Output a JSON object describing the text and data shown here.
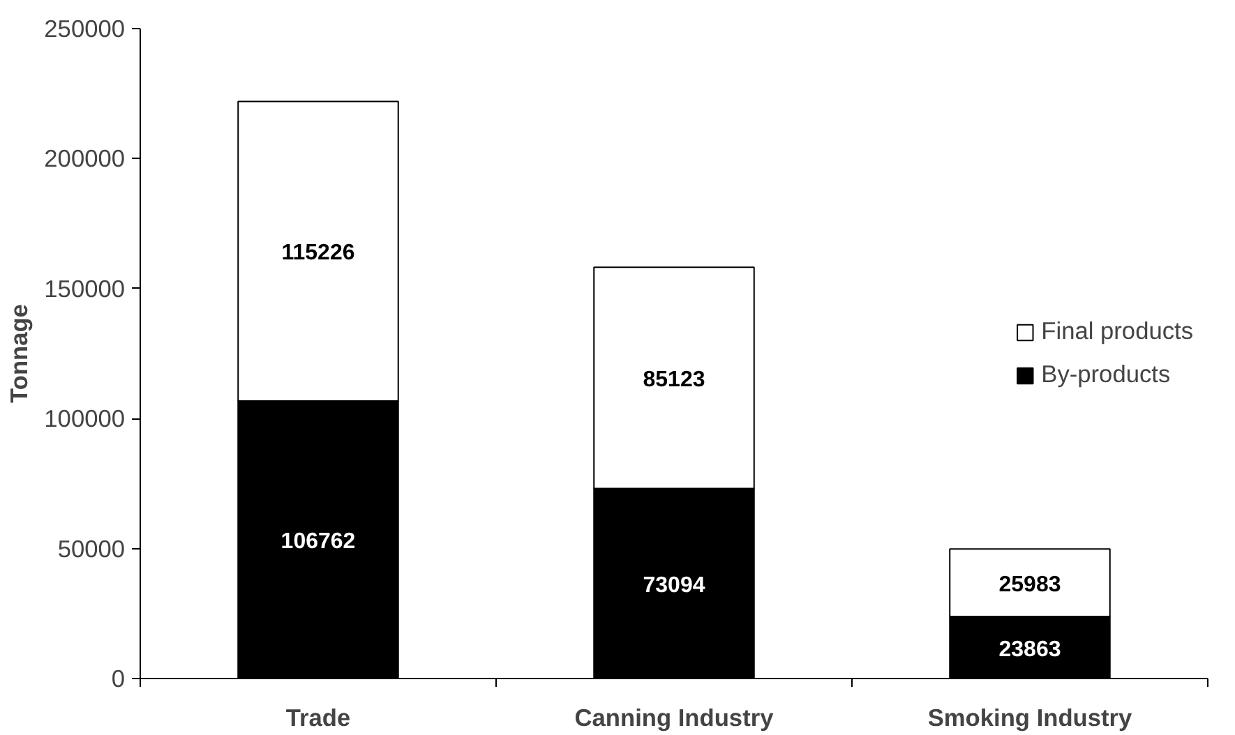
{
  "chart_data": {
    "type": "bar",
    "stacked": true,
    "ylabel": "Tonnage",
    "categories": [
      "Trade",
      "Canning Industry",
      "Smoking Industry"
    ],
    "series": [
      {
        "name": "By-products",
        "color": "#000000",
        "values": [
          106762,
          73094,
          23863
        ]
      },
      {
        "name": "Final products",
        "color": "#ffffff",
        "values": [
          115226,
          85123,
          25983
        ]
      }
    ],
    "ylim": [
      0,
      250000
    ],
    "yticks": [
      0,
      50000,
      100000,
      150000,
      200000,
      250000
    ],
    "data_labels": true,
    "legend": "right",
    "grid": false
  }
}
